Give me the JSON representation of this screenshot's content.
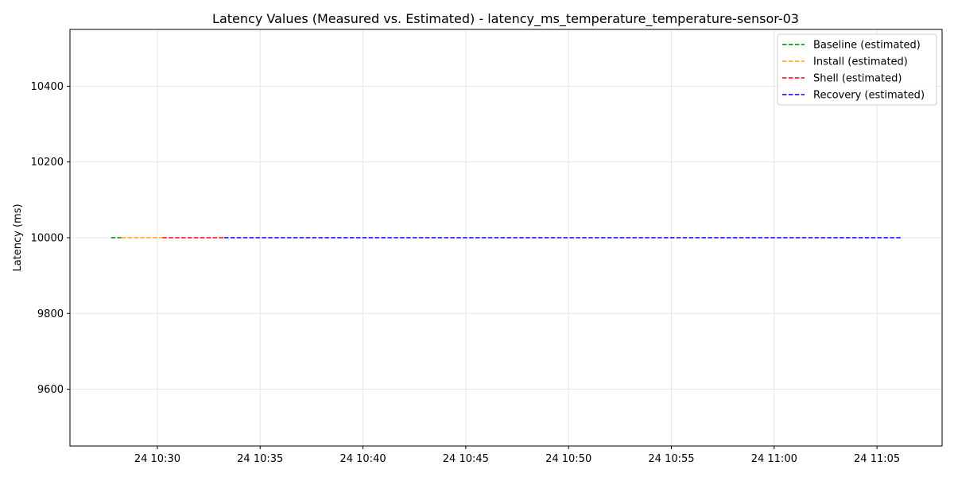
{
  "chart_data": {
    "type": "line",
    "title": "Latency Values (Measured vs. Estimated) - latency_ms_temperature_temperature-sensor-03",
    "xlabel": "",
    "ylabel": "Latency (ms)",
    "x_axis": {
      "type": "time",
      "range": [
        "10:25:45",
        "11:08:10"
      ],
      "ticks": [
        {
          "value": "10:30",
          "label": "24 10:30"
        },
        {
          "value": "10:35",
          "label": "24 10:35"
        },
        {
          "value": "10:40",
          "label": "24 10:40"
        },
        {
          "value": "10:45",
          "label": "24 10:45"
        },
        {
          "value": "10:50",
          "label": "24 10:50"
        },
        {
          "value": "10:55",
          "label": "24 10:55"
        },
        {
          "value": "11:00",
          "label": "24 11:00"
        },
        {
          "value": "11:05",
          "label": "24 11:05"
        }
      ]
    },
    "ylim": [
      9450,
      10550
    ],
    "yticks": [
      9600,
      9800,
      10000,
      10200,
      10400
    ],
    "grid": true,
    "legend_position": "top-right",
    "series": [
      {
        "name": "Baseline (estimated)",
        "color": "#008000",
        "style": "dashed",
        "points": [
          {
            "x": "10:27:45",
            "y": 10000
          },
          {
            "x": "10:28:15",
            "y": 10000
          }
        ]
      },
      {
        "name": "Install (estimated)",
        "color": "#ffa500",
        "style": "dashed",
        "points": [
          {
            "x": "10:28:15",
            "y": 10000
          },
          {
            "x": "10:30:15",
            "y": 10000
          }
        ]
      },
      {
        "name": "Shell (estimated)",
        "color": "#ff0000",
        "style": "dashed",
        "points": [
          {
            "x": "10:30:15",
            "y": 10000
          },
          {
            "x": "10:33:15",
            "y": 10000
          }
        ]
      },
      {
        "name": "Recovery (estimated)",
        "color": "#0000ff",
        "style": "dashed",
        "points": [
          {
            "x": "10:33:15",
            "y": 10000
          },
          {
            "x": "11:06:10",
            "y": 10000
          }
        ]
      }
    ]
  }
}
